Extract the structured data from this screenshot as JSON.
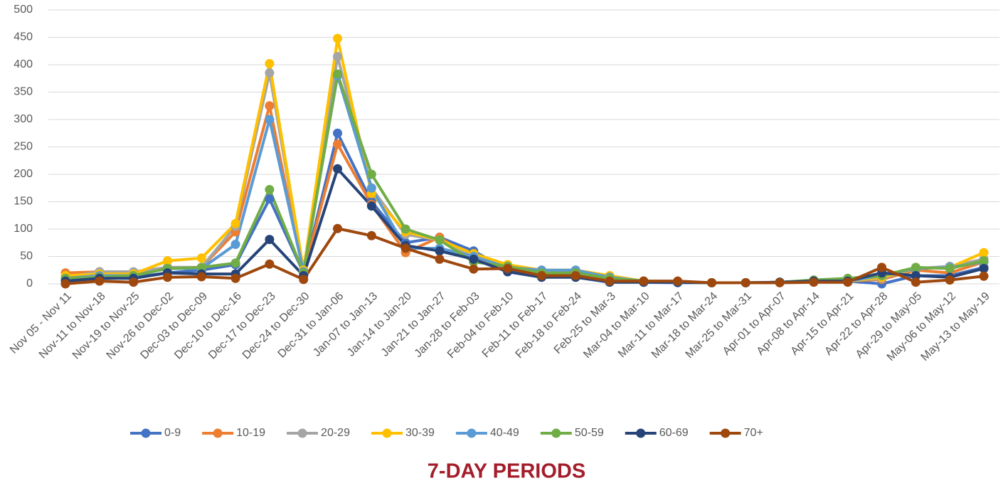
{
  "chart_data": {
    "type": "line",
    "x_label": "7-DAY PERIODS",
    "categories": [
      "Nov 05 - Nov 11",
      "Nov-11  to Nov-18",
      "Nov-19 to Nov-25",
      "Nov-26 to Dec-02",
      "Dec-03 to Dec-09",
      "Dec-10 to Dec-16",
      "Dec-17 to Dec-23",
      "Dec-24 to Dec-30",
      "Dec-31 to Jan-06",
      "Jan-07 to Jan-13",
      "Jan-14 to Jan-20",
      "Jan-21 to Jan-27",
      "Jan-28 to Feb-03",
      "Feb-04 to Feb-10",
      "Feb-11 to Feb-17",
      "Feb-18 to Feb-24",
      "Feb-25 to Mar-3",
      "Mar-04 to Mar-10",
      "Mar-11 to Mar-17",
      "Mar-18 to Mar-24",
      "Mar-25 to Mar-31",
      "Apr-01 to Apr-07",
      "Apr-08 to Apr-14",
      "Apr-15 to Apr-21",
      "Apr-22 to Apr-28",
      "Apr-29 to May-05",
      "May-06 to May-12",
      "May-13 to May-19"
    ],
    "series": [
      {
        "name": "0-9",
        "color": "#4472c4",
        "values": [
          5,
          10,
          12,
          20,
          25,
          35,
          155,
          20,
          275,
          150,
          75,
          85,
          60,
          25,
          15,
          15,
          5,
          3,
          2,
          2,
          2,
          3,
          5,
          5,
          0,
          15,
          15,
          30
        ]
      },
      {
        "name": "10-19",
        "color": "#ed7d31",
        "values": [
          20,
          22,
          18,
          30,
          30,
          95,
          325,
          20,
          255,
          145,
          57,
          85,
          45,
          30,
          20,
          20,
          10,
          5,
          3,
          2,
          2,
          3,
          5,
          5,
          8,
          25,
          20,
          40
        ]
      },
      {
        "name": "20-29",
        "color": "#a5a5a5",
        "values": [
          12,
          22,
          22,
          30,
          30,
          105,
          385,
          25,
          415,
          175,
          90,
          80,
          50,
          30,
          22,
          22,
          10,
          5,
          3,
          2,
          2,
          3,
          5,
          5,
          10,
          28,
          32,
          45
        ]
      },
      {
        "name": "30-39",
        "color": "#ffc000",
        "values": [
          15,
          18,
          18,
          42,
          47,
          110,
          402,
          25,
          448,
          165,
          95,
          80,
          55,
          35,
          25,
          25,
          15,
          5,
          3,
          2,
          2,
          3,
          5,
          5,
          12,
          28,
          30,
          57
        ]
      },
      {
        "name": "40-49",
        "color": "#5b9bd5",
        "values": [
          10,
          15,
          15,
          28,
          28,
          72,
          300,
          22,
          380,
          175,
          65,
          65,
          50,
          30,
          25,
          25,
          12,
          5,
          3,
          2,
          2,
          3,
          5,
          5,
          15,
          28,
          30,
          40
        ]
      },
      {
        "name": "50-59",
        "color": "#70ad47",
        "values": [
          10,
          12,
          15,
          28,
          30,
          38,
          172,
          20,
          383,
          200,
          100,
          80,
          40,
          32,
          20,
          20,
          10,
          5,
          3,
          2,
          2,
          3,
          7,
          10,
          15,
          30,
          28,
          42
        ]
      },
      {
        "name": "60-69",
        "color": "#264478",
        "values": [
          5,
          10,
          10,
          20,
          18,
          18,
          81,
          15,
          210,
          142,
          70,
          60,
          45,
          22,
          12,
          12,
          3,
          3,
          3,
          2,
          2,
          3,
          5,
          5,
          20,
          15,
          12,
          28
        ]
      },
      {
        "name": "70+",
        "color": "#9e480e",
        "values": [
          0,
          5,
          3,
          12,
          13,
          10,
          36,
          8,
          101,
          88,
          65,
          45,
          27,
          28,
          15,
          15,
          5,
          5,
          5,
          2,
          2,
          2,
          3,
          3,
          30,
          3,
          7,
          14
        ]
      }
    ],
    "ylim": [
      0,
      500
    ],
    "yticks": [
      0,
      50,
      100,
      150,
      200,
      250,
      300,
      350,
      400,
      450,
      500
    ],
    "grid": true,
    "legend": "bottom"
  }
}
